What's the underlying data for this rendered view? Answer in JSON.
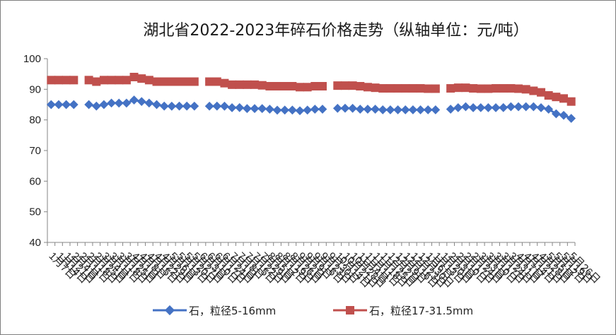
{
  "chart_data": {
    "type": "line",
    "title": "湖北省2022-2023年碎石价格走势（纵轴单位：元/吨）",
    "xlabel": "",
    "ylabel": "",
    "ylim": [
      40,
      100
    ],
    "yticks": [
      40,
      50,
      60,
      70,
      80,
      90,
      100
    ],
    "grid": false,
    "legend": "bottom",
    "categories": [
      "1月7日",
      "1月14日",
      "1月21日",
      "2月4日",
      "2月11日",
      "2月18日",
      "2月25日",
      "3月4日",
      "3月11日",
      "3月18日",
      "3月25日",
      "4月1日",
      "4月8日",
      "4月15日",
      "4月22日",
      "4月29日",
      "5月6日",
      "5月13日",
      "5月20日",
      "5月27日",
      "6月3日",
      "6月10日",
      "6月17日",
      "6月24日",
      "7月1日",
      "7月8日",
      "7月15日",
      "7月22日",
      "7月29日",
      "8月5日",
      "8月12日",
      "8月19日",
      "8月26日",
      "9月2日",
      "9月9日",
      "9月16日",
      "9月23日",
      "9月30日",
      "10月14日",
      "10月21日",
      "10月28日",
      "11月4日",
      "11月11日",
      "11月18日",
      "11月25日",
      "12月2日",
      "12月9日",
      "12月16日",
      "12月23日",
      "12月30日",
      "1月6日",
      "1月13日",
      "1月20日",
      "2月3日",
      "2月10日",
      "2月17日",
      "2月24日",
      "3月3日",
      "3月10日",
      "3月17日",
      "3月24日",
      "3月31日",
      "4月7日",
      "4月14日",
      "4月21日",
      "4月28日",
      "5月5日",
      "5月12日",
      "5月19日",
      "5月26日"
    ],
    "series": [
      {
        "name": "石，粒径5-16mm",
        "color": "#4472C4",
        "marker": "diamond",
        "values": [
          85,
          85,
          85,
          85,
          null,
          85,
          84.5,
          85,
          85.5,
          85.5,
          85.5,
          86.5,
          86,
          85.5,
          85,
          84.5,
          84.5,
          84.5,
          84.5,
          84.5,
          null,
          84.5,
          84.5,
          84.5,
          84,
          84,
          83.7,
          83.7,
          83.7,
          83.5,
          83.2,
          83.2,
          83.2,
          83,
          83.2,
          83.5,
          83.5,
          null,
          83.8,
          83.8,
          83.8,
          83.5,
          83.5,
          83.5,
          83.3,
          83.3,
          83.3,
          83.3,
          83.3,
          83.3,
          83.3,
          83.3,
          null,
          83.5,
          84,
          84.3,
          84,
          84,
          84,
          84,
          84,
          84.3,
          84.3,
          84.3,
          84.3,
          84,
          83.5,
          82,
          81.5,
          80.5
        ]
      },
      {
        "name": "石，粒径17-31.5mm",
        "color": "#C0504D",
        "marker": "square",
        "values": [
          93,
          93,
          93,
          93,
          null,
          93,
          92.5,
          93,
          93,
          93,
          93,
          94,
          93.5,
          93,
          92.5,
          92.5,
          92.5,
          92.5,
          92.5,
          92.5,
          null,
          92.5,
          92.5,
          92,
          91.5,
          91.5,
          91.5,
          91.5,
          91.3,
          91,
          91,
          91,
          91,
          90.7,
          90.7,
          91,
          91,
          null,
          91.2,
          91.2,
          91.2,
          91,
          90.7,
          90.5,
          90.3,
          90.3,
          90.3,
          90.3,
          90.3,
          90.3,
          90.2,
          90.2,
          null,
          90.3,
          90.5,
          90.5,
          90.3,
          90.2,
          90.2,
          90.3,
          90.3,
          90.3,
          90.2,
          90,
          89.5,
          89,
          88,
          87.5,
          87,
          86
        ]
      }
    ]
  }
}
